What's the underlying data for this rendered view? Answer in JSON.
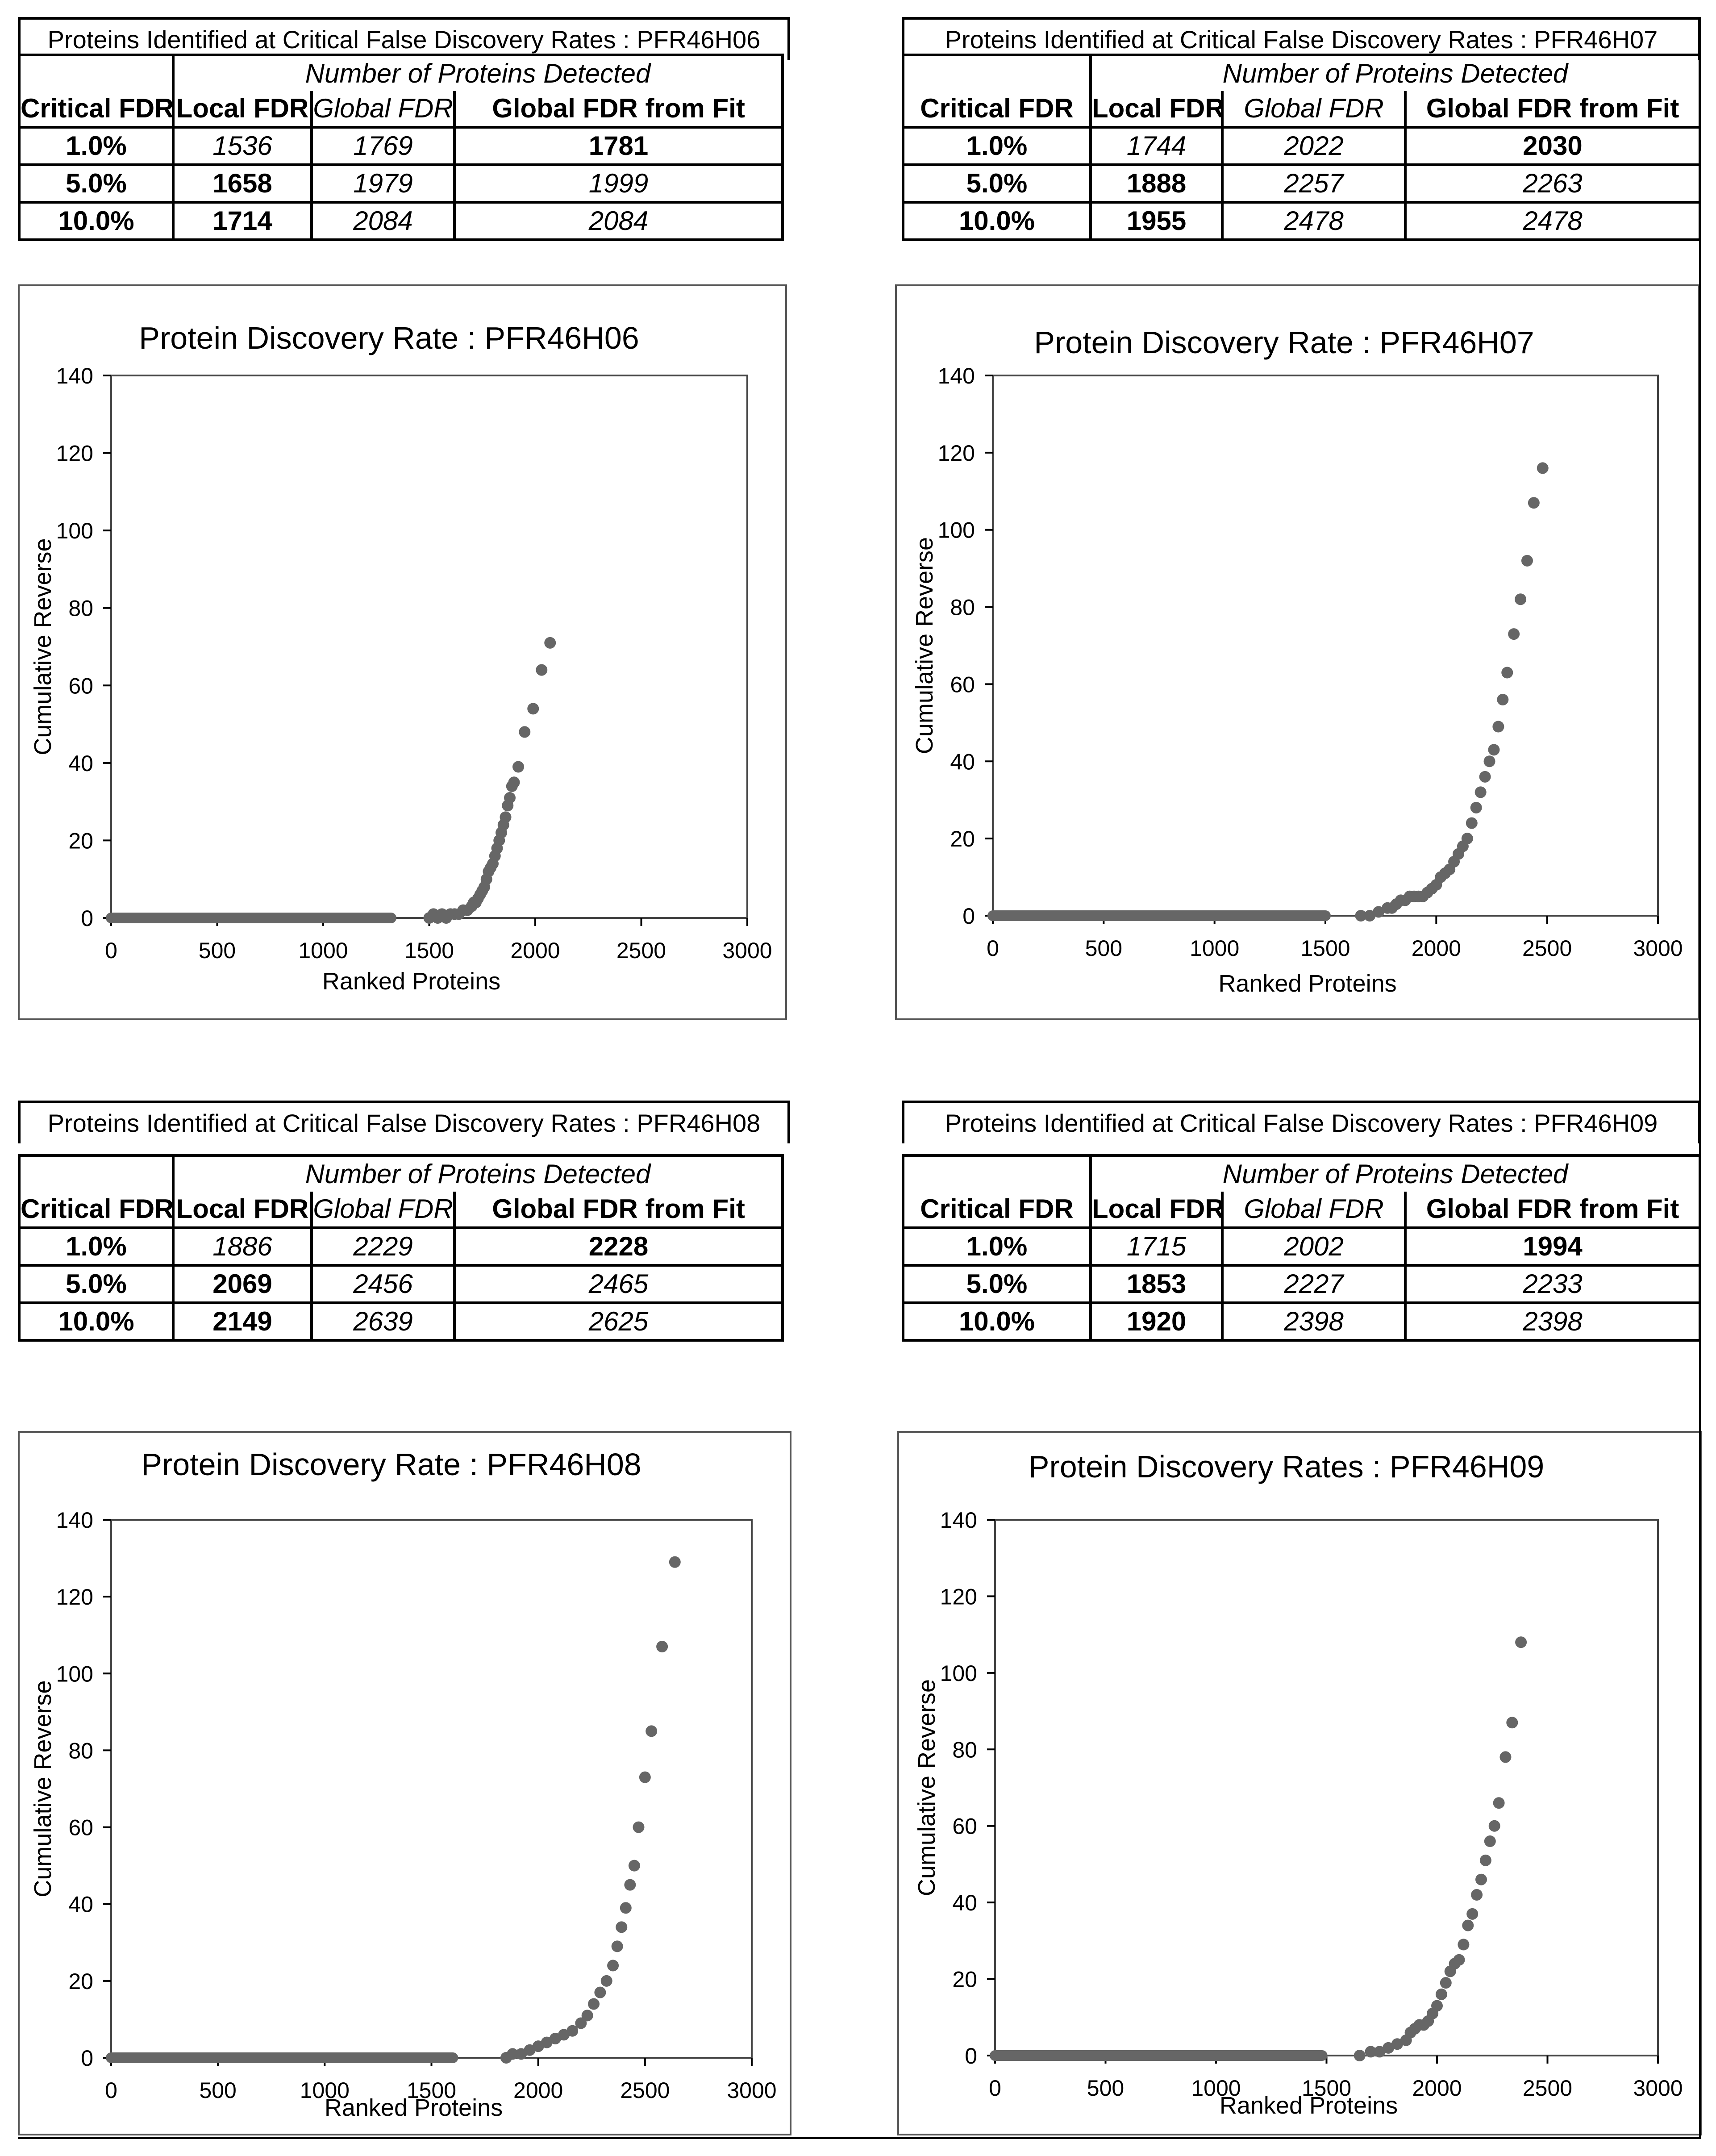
{
  "tables": [
    {
      "title": "Proteins Identified at Critical False Discovery Rates : PFR46H06",
      "group_header": "Number of Proteins Detected",
      "columns": [
        "Critical FDR",
        "Local FDR",
        "Global FDR",
        "Global FDR from Fit"
      ],
      "rows": [
        {
          "fdr": "1.0%",
          "local": "1536",
          "global": "1769",
          "fit": "1781",
          "bold": "fit"
        },
        {
          "fdr": "5.0%",
          "local": "1658",
          "global": "1979",
          "fit": "1999",
          "bold": "local"
        },
        {
          "fdr": "10.0%",
          "local": "1714",
          "global": "2084",
          "fit": "2084",
          "bold": "local"
        }
      ]
    },
    {
      "title": "Proteins Identified at Critical False Discovery Rates : PFR46H07",
      "group_header": "Number of Proteins Detected",
      "columns": [
        "Critical FDR",
        "Local FDR",
        "Global FDR",
        "Global FDR from Fit"
      ],
      "rows": [
        {
          "fdr": "1.0%",
          "local": "1744",
          "global": "2022",
          "fit": "2030",
          "bold": "fit"
        },
        {
          "fdr": "5.0%",
          "local": "1888",
          "global": "2257",
          "fit": "2263",
          "bold": "local"
        },
        {
          "fdr": "10.0%",
          "local": "1955",
          "global": "2478",
          "fit": "2478",
          "bold": "local"
        }
      ]
    },
    {
      "title": "Proteins Identified at Critical False Discovery Rates : PFR46H08",
      "group_header": "Number of Proteins Detected",
      "columns": [
        "Critical FDR",
        "Local FDR",
        "Global FDR",
        "Global FDR from Fit"
      ],
      "rows": [
        {
          "fdr": "1.0%",
          "local": "1886",
          "global": "2229",
          "fit": "2228",
          "bold": "fit"
        },
        {
          "fdr": "5.0%",
          "local": "2069",
          "global": "2456",
          "fit": "2465",
          "bold": "local"
        },
        {
          "fdr": "10.0%",
          "local": "2149",
          "global": "2639",
          "fit": "2625",
          "bold": "local"
        }
      ]
    },
    {
      "title": "Proteins Identified at Critical False Discovery Rates : PFR46H09",
      "group_header": "Number of Proteins Detected",
      "columns": [
        "Critical FDR",
        "Local FDR",
        "Global FDR",
        "Global FDR from Fit"
      ],
      "rows": [
        {
          "fdr": "1.0%",
          "local": "1715",
          "global": "2002",
          "fit": "1994",
          "bold": "fit"
        },
        {
          "fdr": "5.0%",
          "local": "1853",
          "global": "2227",
          "fit": "2233",
          "bold": "local"
        },
        {
          "fdr": "10.0%",
          "local": "1920",
          "global": "2398",
          "fit": "2398",
          "bold": "local"
        }
      ]
    }
  ],
  "chart_data": [
    {
      "type": "scatter",
      "title": "Protein Discovery Rate : PFR46H06",
      "xlabel": "Ranked Proteins",
      "ylabel": "Cumulative Reverse",
      "xlim": [
        0,
        3000
      ],
      "ylim": [
        0,
        140
      ],
      "xticks": [
        0,
        500,
        1000,
        1500,
        2000,
        2500,
        3000
      ],
      "yticks": [
        0,
        20,
        40,
        60,
        80,
        100,
        120,
        140
      ],
      "marker_color": "#666666",
      "baseline_segments": [
        [
          0,
          1000,
          0
        ],
        [
          1000,
          1320,
          0
        ]
      ],
      "points": [
        [
          1500,
          0
        ],
        [
          1520,
          1
        ],
        [
          1540,
          0
        ],
        [
          1560,
          1
        ],
        [
          1580,
          0
        ],
        [
          1600,
          1
        ],
        [
          1620,
          1
        ],
        [
          1640,
          1
        ],
        [
          1660,
          2
        ],
        [
          1680,
          2
        ],
        [
          1700,
          3
        ],
        [
          1710,
          4
        ],
        [
          1720,
          4
        ],
        [
          1730,
          5
        ],
        [
          1740,
          6
        ],
        [
          1750,
          7
        ],
        [
          1760,
          8
        ],
        [
          1770,
          10
        ],
        [
          1780,
          12
        ],
        [
          1790,
          13
        ],
        [
          1800,
          14
        ],
        [
          1810,
          16
        ],
        [
          1820,
          18
        ],
        [
          1830,
          20
        ],
        [
          1840,
          22
        ],
        [
          1850,
          24
        ],
        [
          1860,
          26
        ],
        [
          1870,
          29
        ],
        [
          1880,
          31
        ],
        [
          1890,
          34
        ],
        [
          1900,
          35
        ],
        [
          1920,
          39
        ],
        [
          1950,
          48
        ],
        [
          1990,
          54
        ],
        [
          2030,
          64
        ],
        [
          2070,
          71
        ]
      ]
    },
    {
      "type": "scatter",
      "title": "Protein Discovery Rate : PFR46H07",
      "xlabel": "Ranked Proteins",
      "ylabel": "Cumulative Reverse",
      "xlim": [
        0,
        3000
      ],
      "ylim": [
        0,
        140
      ],
      "xticks": [
        0,
        500,
        1000,
        1500,
        2000,
        2500,
        3000
      ],
      "yticks": [
        0,
        20,
        40,
        60,
        80,
        100,
        120,
        140
      ],
      "marker_color": "#666666",
      "baseline_segments": [
        [
          0,
          1100,
          0
        ],
        [
          1100,
          1500,
          0
        ]
      ],
      "points": [
        [
          1660,
          0
        ],
        [
          1700,
          0
        ],
        [
          1740,
          1
        ],
        [
          1780,
          2
        ],
        [
          1800,
          2
        ],
        [
          1820,
          3
        ],
        [
          1840,
          4
        ],
        [
          1860,
          4
        ],
        [
          1880,
          5
        ],
        [
          1900,
          5
        ],
        [
          1920,
          5
        ],
        [
          1940,
          5
        ],
        [
          1960,
          6
        ],
        [
          1980,
          7
        ],
        [
          2000,
          8
        ],
        [
          2020,
          10
        ],
        [
          2040,
          11
        ],
        [
          2060,
          12
        ],
        [
          2080,
          14
        ],
        [
          2100,
          16
        ],
        [
          2120,
          18
        ],
        [
          2140,
          20
        ],
        [
          2160,
          24
        ],
        [
          2180,
          28
        ],
        [
          2200,
          32
        ],
        [
          2220,
          36
        ],
        [
          2240,
          40
        ],
        [
          2260,
          43
        ],
        [
          2280,
          49
        ],
        [
          2300,
          56
        ],
        [
          2320,
          63
        ],
        [
          2350,
          73
        ],
        [
          2380,
          82
        ],
        [
          2410,
          92
        ],
        [
          2440,
          107
        ],
        [
          2480,
          116
        ]
      ]
    },
    {
      "type": "scatter",
      "title": "Protein Discovery Rate : PFR46H08",
      "xlabel": "Ranked Proteins",
      "ylabel": "Cumulative Reverse",
      "xlim": [
        0,
        3000
      ],
      "ylim": [
        0,
        140
      ],
      "xticks": [
        0,
        500,
        1000,
        1500,
        2000,
        2500,
        3000
      ],
      "yticks": [
        0,
        20,
        40,
        60,
        80,
        100,
        120,
        140
      ],
      "marker_color": "#666666",
      "baseline_segments": [
        [
          0,
          1200,
          0
        ],
        [
          1200,
          1600,
          0
        ]
      ],
      "points": [
        [
          1850,
          0
        ],
        [
          1880,
          1
        ],
        [
          1920,
          1
        ],
        [
          1960,
          2
        ],
        [
          2000,
          3
        ],
        [
          2040,
          4
        ],
        [
          2080,
          5
        ],
        [
          2120,
          6
        ],
        [
          2160,
          7
        ],
        [
          2200,
          9
        ],
        [
          2230,
          11
        ],
        [
          2260,
          14
        ],
        [
          2290,
          17
        ],
        [
          2320,
          20
        ],
        [
          2350,
          24
        ],
        [
          2370,
          29
        ],
        [
          2390,
          34
        ],
        [
          2410,
          39
        ],
        [
          2430,
          45
        ],
        [
          2450,
          50
        ],
        [
          2470,
          60
        ],
        [
          2500,
          73
        ],
        [
          2530,
          85
        ],
        [
          2580,
          107
        ],
        [
          2640,
          129
        ]
      ]
    },
    {
      "type": "scatter",
      "title": "Protein Discovery Rates : PFR46H09",
      "xlabel": "Ranked Proteins",
      "ylabel": "Cumulative Reverse",
      "xlim": [
        0,
        3000
      ],
      "ylim": [
        0,
        140
      ],
      "xticks": [
        0,
        500,
        1000,
        1500,
        2000,
        2500,
        3000
      ],
      "yticks": [
        0,
        20,
        40,
        60,
        80,
        100,
        120,
        140
      ],
      "marker_color": "#666666",
      "baseline_segments": [
        [
          0,
          1100,
          0
        ],
        [
          1100,
          1480,
          0
        ]
      ],
      "points": [
        [
          1650,
          0
        ],
        [
          1700,
          1
        ],
        [
          1740,
          1
        ],
        [
          1780,
          2
        ],
        [
          1820,
          3
        ],
        [
          1860,
          4
        ],
        [
          1880,
          6
        ],
        [
          1900,
          7
        ],
        [
          1920,
          8
        ],
        [
          1940,
          8
        ],
        [
          1960,
          9
        ],
        [
          1980,
          11
        ],
        [
          2000,
          13
        ],
        [
          2020,
          16
        ],
        [
          2040,
          19
        ],
        [
          2060,
          22
        ],
        [
          2080,
          24
        ],
        [
          2100,
          25
        ],
        [
          2120,
          29
        ],
        [
          2140,
          34
        ],
        [
          2160,
          37
        ],
        [
          2180,
          42
        ],
        [
          2200,
          46
        ],
        [
          2220,
          51
        ],
        [
          2240,
          56
        ],
        [
          2260,
          60
        ],
        [
          2280,
          66
        ],
        [
          2310,
          78
        ],
        [
          2340,
          87
        ],
        [
          2380,
          108
        ]
      ]
    }
  ]
}
